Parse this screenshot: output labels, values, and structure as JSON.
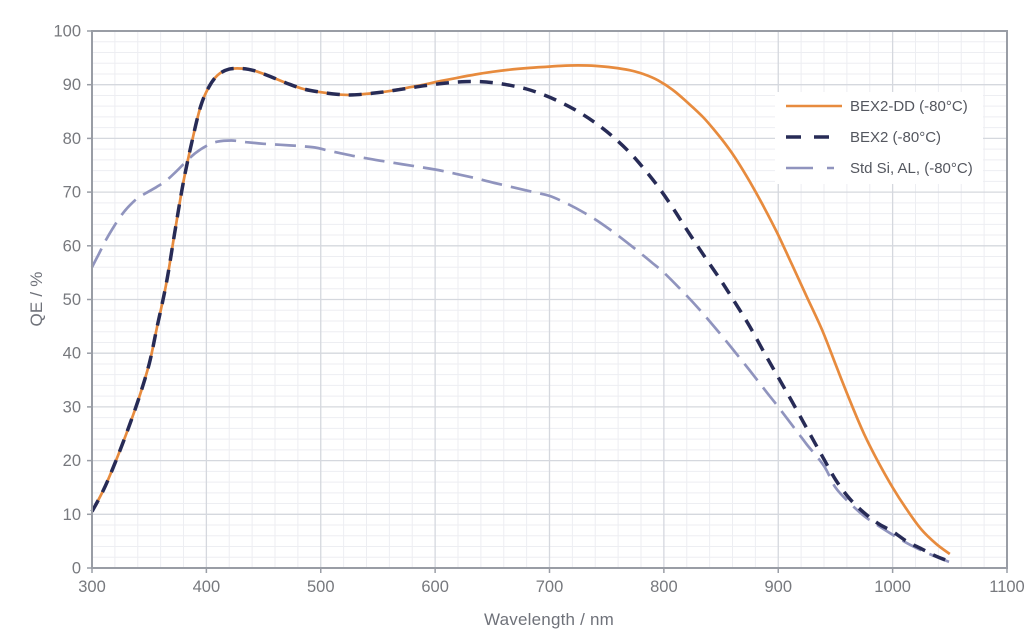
{
  "chart_data": {
    "type": "line",
    "title": "",
    "xlabel": "Wavelength / nm",
    "ylabel": "QE / %",
    "xlim": [
      300,
      1100
    ],
    "ylim": [
      0,
      100
    ],
    "xticks": [
      300,
      400,
      500,
      600,
      700,
      800,
      900,
      1000,
      1100
    ],
    "yticks": [
      0,
      10,
      20,
      30,
      40,
      50,
      60,
      70,
      80,
      90,
      100
    ],
    "grid": {
      "minor_x_step": 20,
      "minor_y_step": 2,
      "major_x_step": 100,
      "major_y_step": 10
    },
    "legend_position": "upper-right-inside",
    "colors": {
      "background": "#FFFFFF",
      "grid_major": "#D5D8DE",
      "grid_minor": "#EDEEF2",
      "border": "#999DA5",
      "tick_text": "#77797E",
      "axis_title_text": "#6F727A",
      "legend_text": "#54575F"
    },
    "series": [
      {
        "name": "BEX2-DD (-80°C)",
        "color": "#E78B3E",
        "style": "solid",
        "x": [
          300,
          310,
          320,
          330,
          340,
          350,
          357,
          365,
          372,
          380,
          388,
          395,
          402,
          410,
          420,
          432,
          442,
          455,
          470,
          485,
          500,
          515,
          528,
          545,
          560,
          575,
          590,
          605,
          620,
          635,
          650,
          665,
          680,
          695,
          710,
          725,
          740,
          755,
          770,
          782,
          795,
          808,
          820,
          835,
          850,
          862,
          875,
          888,
          900,
          912,
          925,
          938,
          950,
          962,
          975,
          988,
          1000,
          1012,
          1025,
          1038,
          1050
        ],
        "y": [
          10.5,
          14.5,
          19.5,
          25,
          31,
          38,
          45,
          53,
          62,
          72,
          80,
          86,
          89.5,
          91.8,
          92.9,
          93,
          92.6,
          91.6,
          90.3,
          89.2,
          88.6,
          88.2,
          88.1,
          88.4,
          88.8,
          89.4,
          90,
          90.7,
          91.3,
          91.9,
          92.4,
          92.8,
          93.1,
          93.3,
          93.5,
          93.6,
          93.5,
          93.2,
          92.7,
          92,
          90.8,
          89,
          86.8,
          83.8,
          80,
          76.5,
          72,
          67,
          62,
          56.5,
          50.5,
          44.5,
          38,
          31.5,
          25,
          19.5,
          15,
          11,
          7.2,
          4.5,
          2.6
        ]
      },
      {
        "name": "BEX2 (-80°C)",
        "color": "#272B56",
        "style": "dashed",
        "x": [
          300,
          310,
          320,
          330,
          340,
          350,
          357,
          365,
          372,
          380,
          388,
          395,
          402,
          410,
          420,
          432,
          442,
          455,
          470,
          485,
          500,
          515,
          528,
          545,
          560,
          575,
          590,
          605,
          620,
          635,
          650,
          665,
          680,
          695,
          710,
          725,
          740,
          755,
          770,
          782,
          795,
          808,
          820,
          835,
          850,
          862,
          875,
          888,
          900,
          912,
          925,
          938,
          950,
          962,
          975,
          988,
          1000,
          1012,
          1025,
          1038,
          1050
        ],
        "y": [
          10.5,
          14.5,
          19.5,
          25,
          31,
          38,
          45,
          53,
          62,
          72,
          80,
          86,
          89.5,
          91.8,
          92.9,
          93,
          92.6,
          91.6,
          90.3,
          89.2,
          88.6,
          88.2,
          88.1,
          88.4,
          88.8,
          89.3,
          89.8,
          90.2,
          90.5,
          90.6,
          90.4,
          89.9,
          89.2,
          88.1,
          86.7,
          85,
          82.9,
          80.4,
          77.4,
          74.5,
          71,
          67,
          63,
          58.2,
          53.5,
          49.5,
          45,
          40,
          35.5,
          31,
          26,
          21,
          16.5,
          13,
          10.3,
          8.2,
          6.8,
          5,
          3.6,
          2.2,
          1.2
        ]
      },
      {
        "name": "Std Si, AL, (-80°C)",
        "color": "#9094BE",
        "style": "long-dash",
        "x": [
          300,
          306,
          312,
          318,
          325,
          332,
          340,
          348,
          356,
          364,
          372,
          380,
          390,
          400,
          410,
          422,
          435,
          450,
          465,
          480,
          495,
          505,
          518,
          532,
          548,
          565,
          580,
          600,
          618,
          635,
          652,
          670,
          688,
          700,
          715,
          730,
          745,
          760,
          775,
          790,
          800,
          815,
          830,
          845,
          860,
          875,
          890,
          900,
          915,
          925,
          940,
          950,
          962,
          975,
          988,
          1000,
          1012,
          1025,
          1040,
          1050
        ],
        "y": [
          56,
          58.5,
          61,
          63.2,
          65.5,
          67.3,
          68.9,
          69.9,
          70.9,
          72,
          73.5,
          75.2,
          77.2,
          78.6,
          79.4,
          79.6,
          79.3,
          79,
          78.8,
          78.6,
          78.3,
          77.8,
          77.2,
          76.6,
          76,
          75.4,
          74.9,
          74.2,
          73.4,
          72.6,
          71.7,
          70.8,
          69.9,
          69.3,
          67.9,
          66.2,
          64.2,
          61.9,
          59.4,
          56.8,
          55,
          51.8,
          48.4,
          44.7,
          40.8,
          36.8,
          32.7,
          30,
          25.8,
          23,
          19,
          15,
          12.2,
          9.7,
          7.8,
          6.2,
          4.7,
          3.3,
          1.9,
          1.1
        ]
      }
    ]
  }
}
